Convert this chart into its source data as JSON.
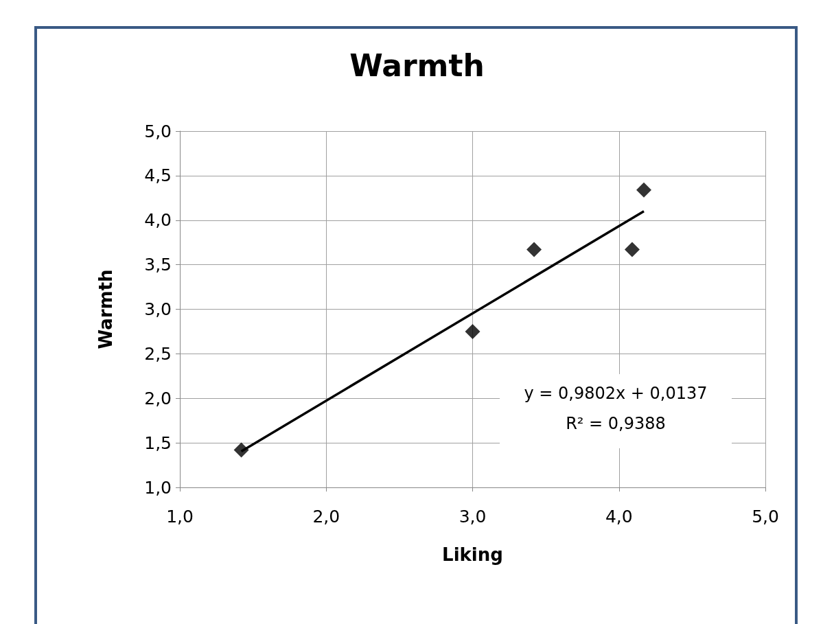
{
  "chart_data": {
    "type": "scatter",
    "title": "Warmth",
    "xlabel": "Liking",
    "ylabel": "Warmth",
    "series": [
      {
        "color": "#000000",
        "marker": "diamond",
        "x": [
          1.42,
          3.0,
          3.42,
          4.09,
          4.17
        ],
        "values": [
          1.42,
          2.75,
          3.67,
          3.67,
          4.34
        ]
      },
      {
        "type": "line",
        "color": "#000000",
        "marker": "none",
        "x": [
          1.42,
          4.17
        ],
        "values": [
          1.405,
          4.101
        ]
      }
    ],
    "xlim": [
      1,
      5
    ],
    "ylim": [
      1,
      5
    ],
    "xticks": [
      {
        "value": 1,
        "label": "1,0"
      },
      {
        "value": 2,
        "label": "2,0"
      },
      {
        "value": 3,
        "label": "3,0"
      },
      {
        "value": 4,
        "label": "4,0"
      },
      {
        "value": 5,
        "label": "5,0"
      }
    ],
    "yticks": [
      {
        "value": 1,
        "label": "1,0"
      },
      {
        "value": 1.5,
        "label": "1,5"
      },
      {
        "value": 2,
        "label": "2,0"
      },
      {
        "value": 2.5,
        "label": "2,5"
      },
      {
        "value": 3,
        "label": "3,0"
      },
      {
        "value": 3.5,
        "label": "3,5"
      },
      {
        "value": 4,
        "label": "4,0"
      },
      {
        "value": 4.5,
        "label": "4,5"
      },
      {
        "value": 5,
        "label": "5,0"
      }
    ],
    "annotations": [
      "y = 0,9802x + 0,0137",
      "R² = 0,9388"
    ],
    "grid": true,
    "line_style": "solid"
  }
}
